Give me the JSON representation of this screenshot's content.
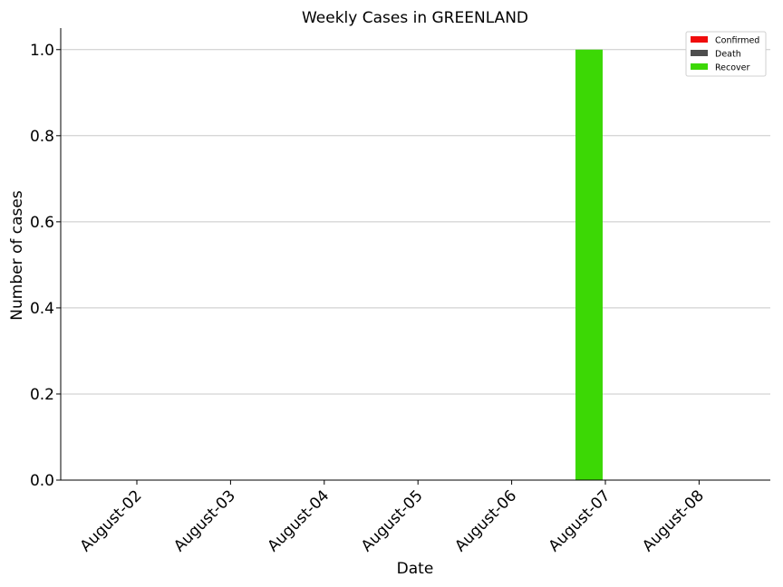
{
  "chart_data": {
    "type": "bar",
    "title": "Weekly Cases in GREENLAND",
    "xlabel": "Date",
    "ylabel": "Number of cases",
    "categories": [
      "August-02",
      "August-03",
      "August-04",
      "August-05",
      "August-06",
      "August-07",
      "August-08"
    ],
    "series": [
      {
        "name": "Confirmed",
        "color": "#f00c0c",
        "values": [
          0,
          0,
          0,
          0,
          0,
          0,
          0
        ]
      },
      {
        "name": "Death",
        "color": "#4d4d4d",
        "values": [
          0,
          0,
          0,
          0,
          0,
          0,
          0
        ]
      },
      {
        "name": "Recover",
        "color": "#3cd805",
        "values": [
          0,
          0,
          0,
          0,
          0,
          1,
          0
        ]
      }
    ],
    "ylim": [
      0,
      1.05
    ],
    "yticks": [
      "0.0",
      "0.2",
      "0.4",
      "0.6",
      "0.8",
      "1.0"
    ],
    "grid": "horizontal",
    "legend": "top-right"
  }
}
